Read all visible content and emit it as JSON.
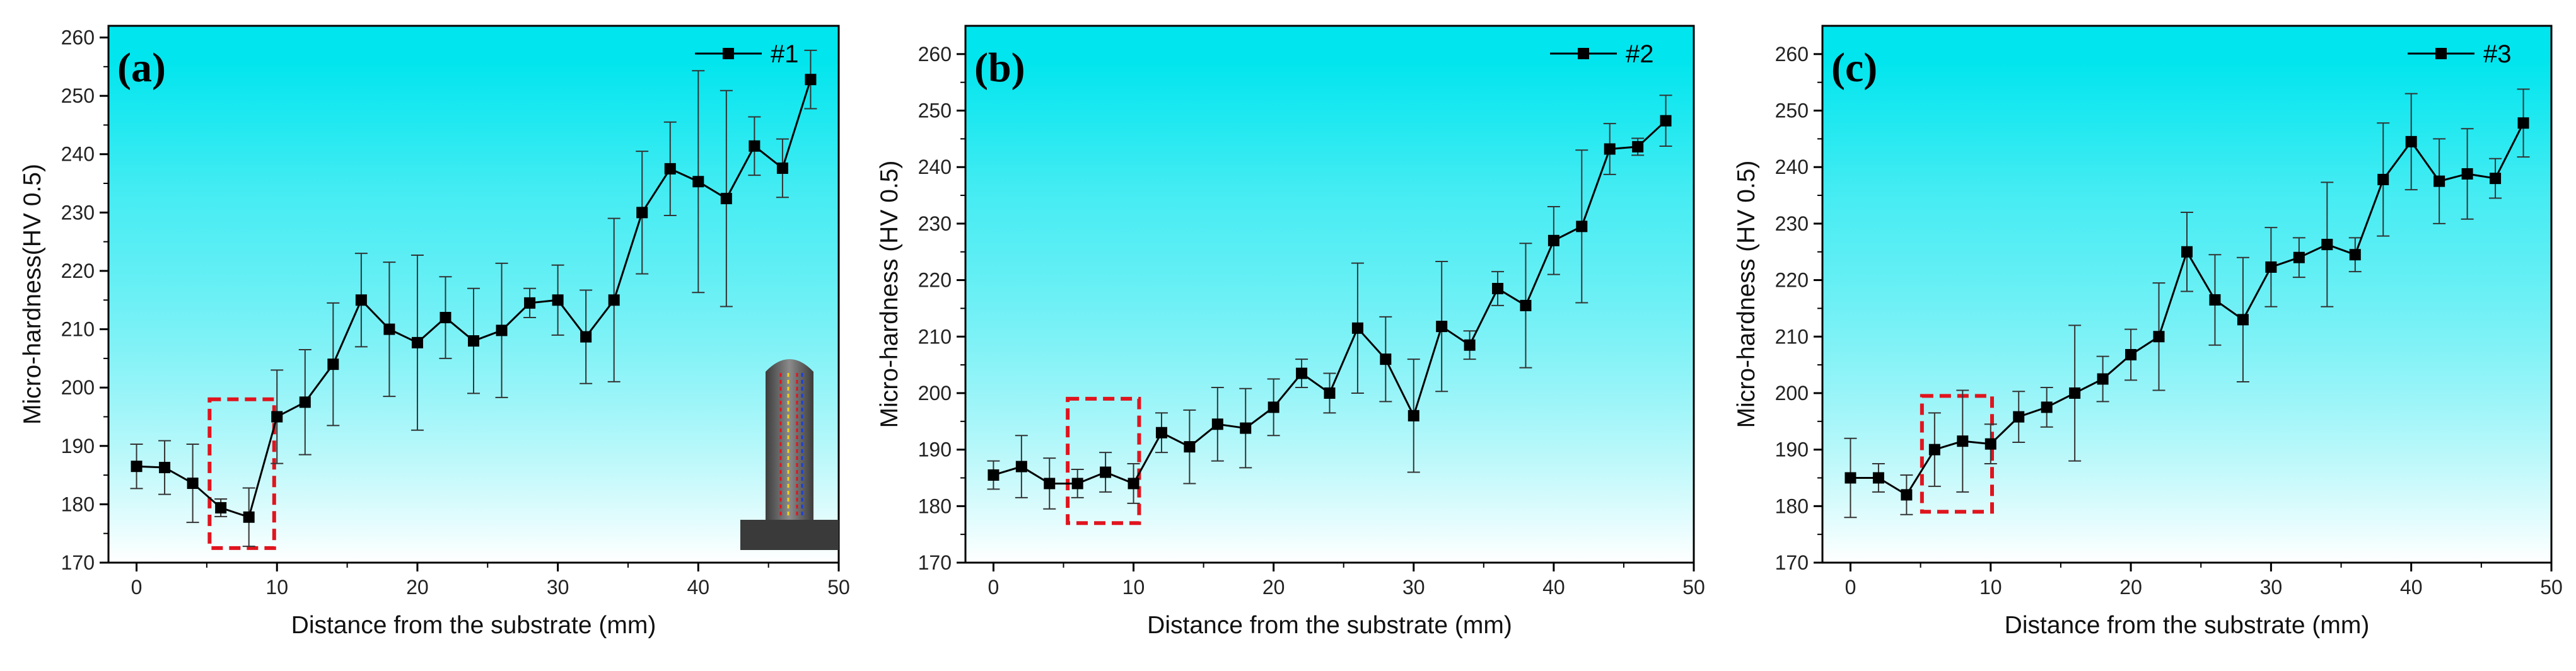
{
  "colors": {
    "line": "#000000",
    "background_top": "#00E5EE",
    "background_bottom": "#FFFFFF",
    "highlight_box": "#E0141E",
    "inset_body": "#5A5A5A",
    "inset_base": "#3A3A3A"
  },
  "chart_data": [
    {
      "type": "line",
      "panel_label": "(a)",
      "xlabel": "Distance from the substrate (mm)",
      "ylabel": "Micro-hardness(HV 0.5)",
      "xlim": [
        -2,
        50
      ],
      "ylim": [
        170,
        262
      ],
      "xticks": [
        0,
        10,
        20,
        30,
        40,
        50
      ],
      "yticks": [
        170,
        180,
        190,
        200,
        210,
        220,
        230,
        240,
        250,
        260
      ],
      "legend": "top-right",
      "grid": false,
      "highlight_box": {
        "x0": 5.2,
        "x1": 9.8,
        "y0": 172.5,
        "y1": 198
      },
      "inset": "sample-sketch",
      "series": [
        {
          "name": "#1",
          "marker": "square",
          "x": [
            0,
            2,
            4,
            6,
            8,
            10,
            12,
            14,
            16,
            18,
            20,
            22,
            24,
            26,
            28,
            30,
            32,
            34,
            36,
            38,
            40,
            42,
            44,
            46,
            48
          ],
          "y": [
            186.5,
            186.3,
            183.6,
            179.4,
            177.8,
            195,
            197.5,
            204,
            215,
            210,
            207.7,
            212,
            208,
            209.8,
            214.5,
            215,
            208.7,
            215,
            230,
            237.5,
            235.3,
            232.4,
            241.4,
            237.6,
            252.8
          ],
          "err": [
            3.8,
            4.6,
            6.7,
            1.5,
            5.0,
            8.0,
            9.0,
            10.5,
            8.0,
            11.5,
            15.0,
            7.0,
            9.0,
            11.5,
            2.5,
            6.0,
            8.0,
            14.0,
            10.5,
            8.0,
            19.0,
            18.5,
            5.0,
            5.0,
            5.0
          ]
        }
      ]
    },
    {
      "type": "line",
      "panel_label": "(b)",
      "xlabel": "Distance from the substrate (mm)",
      "ylabel": "Micro-hardness (HV 0.5)",
      "xlim": [
        -2,
        50
      ],
      "ylim": [
        170,
        265
      ],
      "xticks": [
        0,
        10,
        20,
        30,
        40,
        50
      ],
      "yticks": [
        170,
        180,
        190,
        200,
        210,
        220,
        230,
        240,
        250,
        260
      ],
      "legend": "top-right",
      "grid": false,
      "highlight_box": {
        "x0": 5.3,
        "x1": 10.4,
        "y0": 177,
        "y1": 199
      },
      "series": [
        {
          "name": "#2",
          "marker": "square",
          "x": [
            0,
            2,
            4,
            6,
            8,
            10,
            12,
            14,
            16,
            18,
            20,
            22,
            24,
            26,
            28,
            30,
            32,
            34,
            36,
            38,
            40,
            42,
            44,
            46,
            48
          ],
          "y": [
            185.5,
            187,
            184,
            184,
            186,
            184,
            193,
            190.5,
            194.5,
            193.8,
            197.5,
            203.5,
            200,
            211.5,
            206,
            196,
            211.8,
            208.5,
            218.5,
            215.5,
            227,
            229.5,
            243.2,
            243.6,
            248.2
          ],
          "err": [
            2.5,
            5.5,
            4.5,
            2.5,
            3.5,
            3.5,
            3.5,
            6.5,
            6.5,
            7.0,
            5.0,
            2.5,
            3.5,
            11.5,
            7.5,
            10.0,
            11.5,
            2.5,
            3.0,
            11.0,
            6.0,
            13.5,
            4.5,
            1.5,
            4.5
          ]
        }
      ]
    },
    {
      "type": "line",
      "panel_label": "(c)",
      "xlabel": "Distance from the substrate (mm)",
      "ylabel": "Micro-hardness (HV 0.5)",
      "xlim": [
        -2,
        50
      ],
      "ylim": [
        170,
        265
      ],
      "xticks": [
        0,
        10,
        20,
        30,
        40,
        50
      ],
      "yticks": [
        170,
        180,
        190,
        200,
        210,
        220,
        230,
        240,
        250,
        260
      ],
      "legend": "top-right",
      "grid": false,
      "highlight_box": {
        "x0": 5.1,
        "x1": 10.1,
        "y0": 179,
        "y1": 199.5
      },
      "series": [
        {
          "name": "#3",
          "marker": "square",
          "x": [
            0,
            2,
            4,
            6,
            8,
            10,
            12,
            14,
            16,
            18,
            20,
            22,
            24,
            26,
            28,
            30,
            32,
            34,
            36,
            38,
            40,
            42,
            44,
            46,
            48
          ],
          "y": [
            185,
            185,
            182,
            190,
            191.5,
            191,
            195.8,
            197.5,
            200,
            202.5,
            206.8,
            210,
            225,
            216.5,
            213,
            222.3,
            224,
            226.3,
            224.5,
            237.8,
            244.5,
            237.5,
            238.8,
            238,
            247.8
          ],
          "err": [
            7.0,
            2.5,
            3.5,
            6.5,
            9.0,
            3.5,
            4.5,
            3.5,
            12.0,
            4.0,
            4.5,
            9.5,
            7.0,
            8.0,
            11.0,
            7.0,
            3.5,
            11.0,
            3.0,
            10.0,
            8.5,
            7.5,
            8.0,
            3.5,
            6.0
          ]
        }
      ]
    }
  ]
}
